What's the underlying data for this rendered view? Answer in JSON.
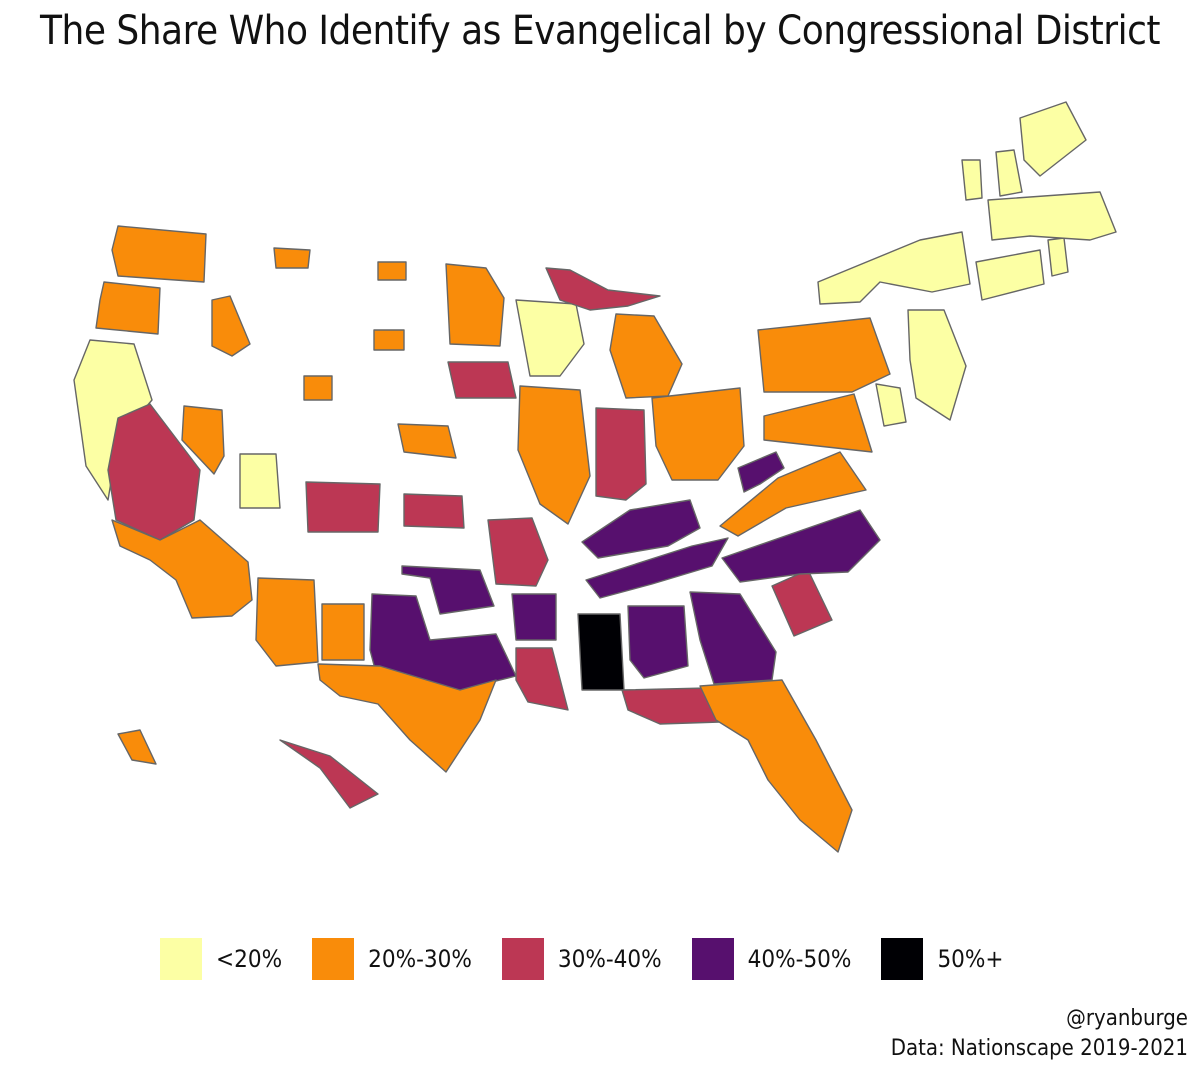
{
  "title": "The Share Who Identify as Evangelical by Congressional District",
  "legend": [
    {
      "label": "<20%",
      "color": "#FCFFA4"
    },
    {
      "label": "20%-30%",
      "color": "#F98C0A"
    },
    {
      "label": "30%-40%",
      "color": "#BC3754"
    },
    {
      "label": "40%-50%",
      "color": "#57106E"
    },
    {
      "label": "50%+",
      "color": "#000004"
    }
  ],
  "credit": {
    "handle": "@ryanburge",
    "source": "Data: Nationscape 2019-2021"
  },
  "regions": [
    {
      "name": "washington",
      "bin": 1
    },
    {
      "name": "oregon",
      "bin": 1
    },
    {
      "name": "california-north",
      "bin": 0
    },
    {
      "name": "california-central",
      "bin": 2
    },
    {
      "name": "california-south",
      "bin": 1
    },
    {
      "name": "idaho",
      "bin": 1
    },
    {
      "name": "nevada",
      "bin": 1
    },
    {
      "name": "utah",
      "bin": 0
    },
    {
      "name": "arizona",
      "bin": 1
    },
    {
      "name": "montana",
      "bin": 1
    },
    {
      "name": "wyoming",
      "bin": 1
    },
    {
      "name": "colorado",
      "bin": 2
    },
    {
      "name": "new-mexico",
      "bin": 1
    },
    {
      "name": "north-dakota",
      "bin": 1
    },
    {
      "name": "south-dakota",
      "bin": 1
    },
    {
      "name": "nebraska",
      "bin": 1
    },
    {
      "name": "kansas",
      "bin": 2
    },
    {
      "name": "oklahoma",
      "bin": 3
    },
    {
      "name": "texas-north",
      "bin": 3
    },
    {
      "name": "texas-south",
      "bin": 1
    },
    {
      "name": "minnesota",
      "bin": 1
    },
    {
      "name": "iowa",
      "bin": 2
    },
    {
      "name": "missouri",
      "bin": 2
    },
    {
      "name": "arkansas",
      "bin": 3
    },
    {
      "name": "louisiana",
      "bin": 2
    },
    {
      "name": "wisconsin",
      "bin": 0
    },
    {
      "name": "illinois",
      "bin": 1
    },
    {
      "name": "michigan-upper",
      "bin": 2
    },
    {
      "name": "michigan-lower",
      "bin": 1
    },
    {
      "name": "indiana",
      "bin": 2
    },
    {
      "name": "ohio",
      "bin": 1
    },
    {
      "name": "kentucky",
      "bin": 3
    },
    {
      "name": "tennessee",
      "bin": 3
    },
    {
      "name": "mississippi",
      "bin": 4
    },
    {
      "name": "alabama",
      "bin": 3
    },
    {
      "name": "georgia",
      "bin": 3
    },
    {
      "name": "florida-panhandle",
      "bin": 2
    },
    {
      "name": "florida-peninsula",
      "bin": 1
    },
    {
      "name": "south-carolina",
      "bin": 2
    },
    {
      "name": "north-carolina",
      "bin": 3
    },
    {
      "name": "virginia",
      "bin": 1
    },
    {
      "name": "west-virginia",
      "bin": 3
    },
    {
      "name": "pennsylvania",
      "bin": 1
    },
    {
      "name": "new-york",
      "bin": 0
    },
    {
      "name": "new-jersey",
      "bin": 0
    },
    {
      "name": "maryland",
      "bin": 1
    },
    {
      "name": "delaware",
      "bin": 0
    },
    {
      "name": "connecticut",
      "bin": 0
    },
    {
      "name": "rhode-island",
      "bin": 0
    },
    {
      "name": "massachusetts",
      "bin": 0
    },
    {
      "name": "vermont",
      "bin": 0
    },
    {
      "name": "new-hampshire",
      "bin": 0
    },
    {
      "name": "maine",
      "bin": 0
    },
    {
      "name": "alaska",
      "bin": 1
    },
    {
      "name": "hawaii",
      "bin": 2
    }
  ]
}
